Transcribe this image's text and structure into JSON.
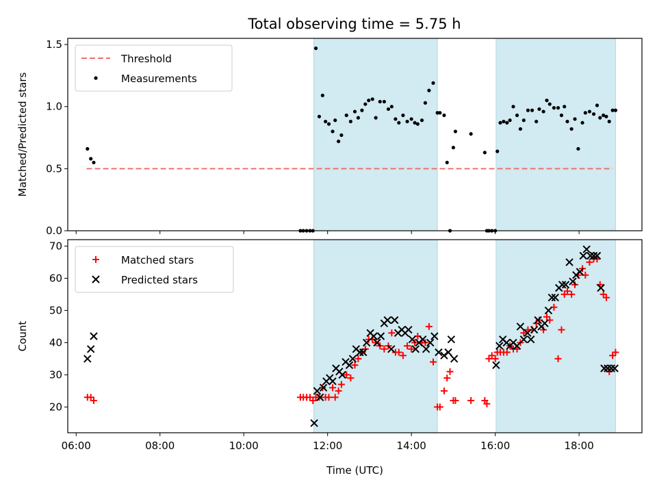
{
  "chart_data": [
    {
      "type": "scatter",
      "title": "Total observing time = 5.75 h",
      "xlabel": "",
      "ylabel": "Matched/Predicted stars",
      "xlim": [
        5.8,
        19.5
      ],
      "ylim": [
        0,
        1.55
      ],
      "yticks": [
        0,
        0.5,
        1,
        1.5
      ],
      "ytick_labels": [
        "0.0",
        "0.5",
        "1.0",
        "1.5"
      ],
      "shaded_intervals": [
        [
          11.67,
          14.62
        ],
        [
          16.02,
          18.87
        ]
      ],
      "legend": [
        "Threshold",
        "Measurements"
      ],
      "legend_position": "upper-left",
      "colors": {
        "threshold": "#f07070",
        "measurements": "#000000",
        "shade": "#add8e6"
      },
      "threshold": {
        "name": "Threshold",
        "value": 0.5,
        "x_range": [
          6.25,
          18.8
        ]
      },
      "series": [
        {
          "name": "Measurements",
          "x": [
            6.27,
            6.35,
            6.42,
            11.35,
            11.42,
            11.5,
            11.58,
            11.65,
            11.72,
            11.8,
            11.88,
            11.95,
            12.03,
            12.12,
            12.18,
            12.26,
            12.33,
            12.45,
            12.55,
            12.65,
            12.73,
            12.82,
            12.9,
            12.98,
            13.07,
            13.15,
            13.25,
            13.35,
            13.45,
            13.53,
            13.62,
            13.7,
            13.8,
            13.9,
            14.0,
            14.08,
            14.15,
            14.25,
            14.33,
            14.42,
            14.52,
            14.62,
            14.68,
            14.78,
            14.85,
            14.92,
            15.0,
            15.05,
            15.42,
            15.75,
            15.8,
            15.85,
            15.92,
            16.0,
            16.05,
            16.12,
            16.2,
            16.28,
            16.35,
            16.43,
            16.52,
            16.6,
            16.68,
            16.78,
            16.88,
            16.98,
            17.05,
            17.15,
            17.23,
            17.3,
            17.4,
            17.5,
            17.58,
            17.65,
            17.72,
            17.82,
            17.9,
            17.98,
            18.08,
            18.15,
            18.25,
            18.35,
            18.43,
            18.5,
            18.58,
            18.65,
            18.72,
            18.8,
            18.87
          ],
          "y": [
            0.66,
            0.58,
            0.55,
            0.0,
            0.0,
            0.0,
            0.0,
            0.0,
            1.47,
            0.92,
            1.09,
            0.88,
            0.86,
            0.8,
            0.89,
            0.72,
            0.77,
            0.93,
            0.88,
            0.96,
            0.91,
            0.97,
            1.02,
            1.05,
            1.06,
            0.91,
            1.04,
            1.04,
            0.98,
            1.0,
            0.9,
            0.87,
            0.93,
            0.88,
            0.9,
            0.87,
            0.86,
            0.89,
            1.03,
            1.13,
            1.19,
            0.95,
            0.95,
            0.93,
            0.55,
            0.0,
            0.67,
            0.8,
            0.78,
            0.63,
            0.0,
            0.0,
            0.0,
            0.0,
            0.64,
            0.87,
            0.88,
            0.87,
            0.89,
            1.0,
            0.93,
            0.82,
            0.89,
            0.97,
            0.97,
            0.88,
            0.98,
            0.96,
            1.05,
            1.02,
            0.99,
            0.99,
            0.93,
            1.0,
            0.88,
            0.82,
            0.9,
            0.66,
            0.87,
            0.95,
            0.96,
            0.94,
            1.01,
            0.91,
            0.93,
            0.92,
            0.88,
            0.97,
            0.97
          ]
        }
      ]
    },
    {
      "type": "scatter",
      "xlabel": "Time (UTC)",
      "ylabel": "Count",
      "xlim": [
        5.8,
        19.5
      ],
      "ylim": [
        12,
        72
      ],
      "xticks": [
        6,
        8,
        10,
        12,
        14,
        16,
        18
      ],
      "xtick_labels": [
        "06:00",
        "08:00",
        "10:00",
        "12:00",
        "14:00",
        "16:00",
        "18:00"
      ],
      "yticks": [
        20,
        30,
        40,
        50,
        60,
        70
      ],
      "ytick_labels": [
        "20",
        "30",
        "40",
        "50",
        "60",
        "70"
      ],
      "shaded_intervals": [
        [
          11.67,
          14.62
        ],
        [
          16.02,
          18.87
        ]
      ],
      "legend": [
        "Matched stars",
        "Predicted stars"
      ],
      "legend_position": "upper-left",
      "colors": {
        "matched": "#ff0000",
        "predicted": "#000000",
        "shade": "#add8e6"
      },
      "series": [
        {
          "name": "Matched stars",
          "x": [
            6.27,
            6.35,
            6.42,
            11.35,
            11.42,
            11.5,
            11.58,
            11.65,
            11.72,
            11.8,
            11.88,
            11.95,
            12.03,
            12.12,
            12.18,
            12.26,
            12.33,
            12.45,
            12.55,
            12.65,
            12.73,
            12.82,
            12.9,
            12.98,
            13.07,
            13.15,
            13.25,
            13.35,
            13.45,
            13.53,
            13.62,
            13.7,
            13.8,
            13.9,
            14.0,
            14.08,
            14.15,
            14.25,
            14.33,
            14.42,
            14.52,
            14.62,
            14.68,
            14.78,
            14.85,
            14.92,
            15.0,
            15.05,
            15.42,
            15.75,
            15.8,
            15.85,
            15.92,
            16.0,
            16.05,
            16.12,
            16.2,
            16.28,
            16.35,
            16.43,
            16.52,
            16.6,
            16.68,
            16.78,
            16.88,
            16.98,
            17.05,
            17.15,
            17.23,
            17.3,
            17.4,
            17.5,
            17.58,
            17.65,
            17.72,
            17.82,
            17.9,
            17.98,
            18.08,
            18.15,
            18.25,
            18.35,
            18.43,
            18.5,
            18.58,
            18.65,
            18.72,
            18.8,
            18.87
          ],
          "y": [
            23,
            23,
            22,
            23,
            23,
            23,
            23,
            22,
            23,
            23,
            26,
            23,
            23,
            26,
            23,
            25,
            27,
            30,
            29,
            33,
            35,
            37,
            38,
            41,
            41,
            40,
            39,
            38,
            39,
            43,
            37,
            37,
            36,
            39,
            38,
            40,
            42,
            40,
            40,
            45,
            34,
            20,
            20,
            25,
            29,
            31,
            22,
            22,
            22,
            22,
            21,
            35,
            36,
            35,
            37,
            37,
            37,
            37,
            39,
            38,
            38,
            40,
            43,
            44,
            44,
            46,
            47,
            44,
            48,
            47,
            51,
            35,
            44,
            55,
            56,
            55,
            58,
            61,
            63,
            61,
            65,
            66,
            66,
            58,
            55,
            54,
            31,
            36,
            37
          ]
        },
        {
          "name": "Predicted stars",
          "x": [
            6.27,
            6.35,
            6.42,
            11.68,
            11.75,
            11.82,
            11.9,
            11.97,
            12.05,
            12.12,
            12.2,
            12.28,
            12.35,
            12.43,
            12.52,
            12.6,
            12.68,
            12.77,
            12.85,
            12.93,
            13.02,
            13.1,
            13.18,
            13.27,
            13.35,
            13.43,
            13.52,
            13.6,
            13.68,
            13.77,
            13.85,
            13.93,
            14.02,
            14.1,
            14.18,
            14.27,
            14.35,
            14.45,
            14.55,
            14.65,
            14.78,
            14.88,
            14.95,
            15.02,
            16.02,
            16.1,
            16.18,
            16.27,
            16.35,
            16.43,
            16.52,
            16.6,
            16.68,
            16.77,
            16.85,
            16.93,
            17.02,
            17.1,
            17.18,
            17.27,
            17.35,
            17.43,
            17.52,
            17.6,
            17.68,
            17.77,
            17.85,
            17.93,
            18.02,
            18.1,
            18.18,
            18.27,
            18.35,
            18.43,
            18.52,
            18.6,
            18.68,
            18.77,
            18.85
          ],
          "y": [
            35,
            38,
            42,
            15,
            25,
            23,
            26,
            28,
            29,
            28,
            32,
            31,
            30,
            34,
            33,
            35,
            38,
            37,
            37,
            40,
            43,
            42,
            40,
            42,
            46,
            47,
            38,
            47,
            43,
            44,
            43,
            44,
            41,
            38,
            40,
            41,
            38,
            40,
            42,
            37,
            36,
            37,
            41,
            35,
            33,
            39,
            41,
            40,
            39,
            40,
            39,
            45,
            41,
            43,
            41,
            44,
            47,
            45,
            46,
            50,
            54,
            54,
            57,
            58,
            58,
            65,
            59,
            61,
            62,
            67,
            69,
            67,
            67,
            67,
            57,
            32,
            32,
            32,
            32
          ]
        }
      ]
    }
  ]
}
